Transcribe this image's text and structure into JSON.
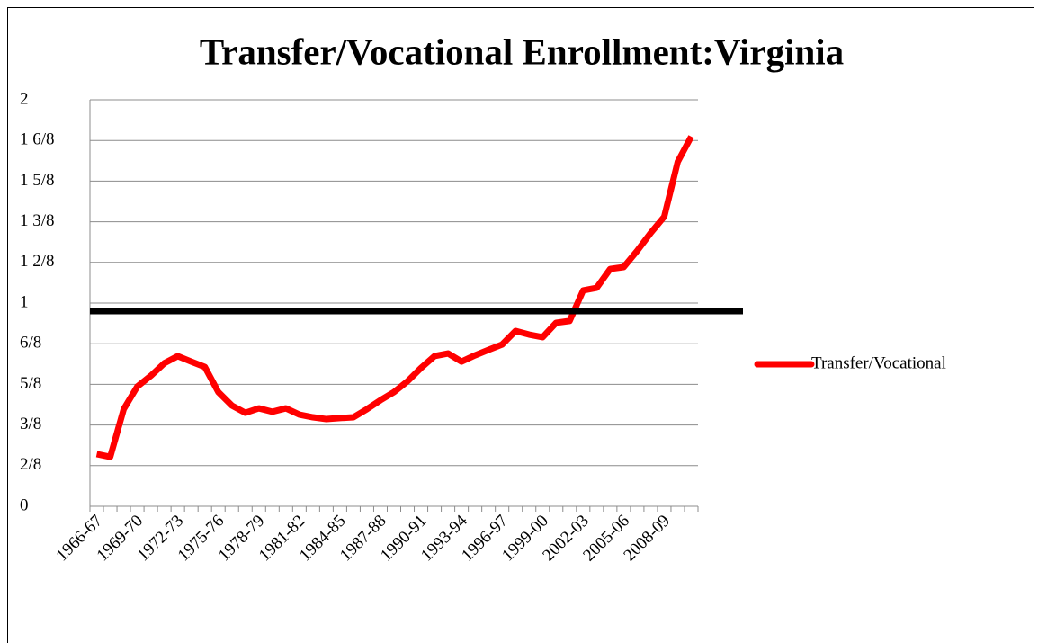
{
  "chart_data": {
    "type": "line",
    "title": "Transfer/Vocational Enrollment:Virginia",
    "categories": [
      "1966-67",
      null,
      null,
      "1969-70",
      null,
      null,
      "1972-73",
      null,
      null,
      "1975-76",
      null,
      null,
      "1978-79",
      null,
      null,
      "1981-82",
      null,
      null,
      "1984-85",
      null,
      null,
      "1987-88",
      null,
      null,
      "1990-91",
      null,
      null,
      "1993-94",
      null,
      null,
      "1996-97",
      null,
      null,
      "1999-00",
      null,
      null,
      "2002-03",
      null,
      null,
      "2005-06",
      null,
      null,
      "2008-09",
      null,
      null
    ],
    "series": [
      {
        "name": "Transfer/Vocational",
        "color": "#ff0000",
        "values": [
          0.257,
          0.243,
          0.478,
          0.589,
          0.642,
          0.704,
          0.739,
          0.712,
          0.686,
          0.562,
          0.496,
          0.46,
          0.482,
          0.465,
          0.482,
          0.451,
          0.438,
          0.429,
          0.434,
          0.438,
          0.478,
          0.522,
          0.562,
          0.615,
          0.681,
          0.739,
          0.752,
          0.712,
          0.743,
          0.77,
          0.796,
          0.863,
          0.845,
          0.832,
          0.903,
          0.912,
          1.062,
          1.075,
          1.168,
          1.177,
          1.257,
          1.345,
          1.425,
          1.695,
          1.819
        ]
      }
    ],
    "reference_line": {
      "value": 0.96,
      "color": "#000000"
    },
    "ylim": [
      0,
      2
    ],
    "yticks": [
      0,
      {
        "value": 0.2,
        "label": "2/8"
      },
      {
        "value": 0.4,
        "label": "3/8"
      },
      {
        "value": 0.6,
        "label": "5/8"
      },
      {
        "value": 0.8,
        "label": "6/8"
      },
      1,
      {
        "value": 1.2,
        "label": "1 2/8"
      },
      {
        "value": 1.4,
        "label": "1 3/8"
      },
      {
        "value": 1.6,
        "label": "1 5/8"
      },
      {
        "value": 1.8,
        "label": "1 6/8"
      },
      2
    ],
    "grid": true,
    "legend": "right"
  }
}
